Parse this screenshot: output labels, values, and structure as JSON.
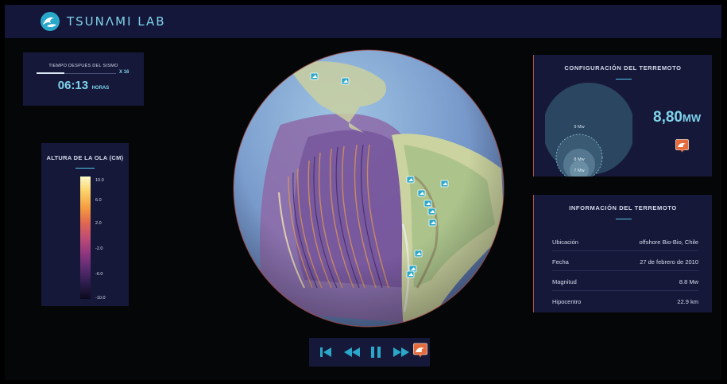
{
  "header": {
    "app_name": "TSUNΛMI LAB"
  },
  "time_panel": {
    "label": "TIEMPO DESPUÉS DEL SISMO",
    "speed": "X 16",
    "time": "06:13",
    "unit": "HORAS",
    "progress": 0.35
  },
  "legend": {
    "title": "ALTURA DE LA OLA (CM)",
    "ticks": [
      "10.0",
      "6.0",
      "2.0",
      "-2.0",
      "-6.0",
      "-10.0"
    ]
  },
  "config": {
    "title": "CONFIGURACIÓN DEL TERREMOTO",
    "circle_labels": [
      "9 Mw",
      "8 Mw",
      "7 Mw"
    ],
    "magnitude": "8,80",
    "magnitude_unit": "MW"
  },
  "info": {
    "title": "INFORMACIÓN DEL TERREMOTO",
    "rows": [
      {
        "key": "Ubicación",
        "value": "offshore Bio-Bio, Chile"
      },
      {
        "key": "Fecha",
        "value": "27 de febrero de 2010"
      },
      {
        "key": "Magnitud",
        "value": "8.8 Mw"
      },
      {
        "key": "Hipocentro",
        "value": "22.9 km"
      }
    ]
  },
  "colors": {
    "accent": "#7fd3ea",
    "panel": "#16183a",
    "topbar": "#14163a",
    "marker": "#2aa8c9",
    "quake": "#e56a3b"
  },
  "icons": {
    "logo": "wave-logo-icon",
    "controls": [
      "skip-to-start-icon",
      "rewind-icon",
      "pause-icon",
      "fast-forward-icon",
      "earthquake-icon"
    ],
    "markers": "tide-gauge-marker-icon"
  }
}
